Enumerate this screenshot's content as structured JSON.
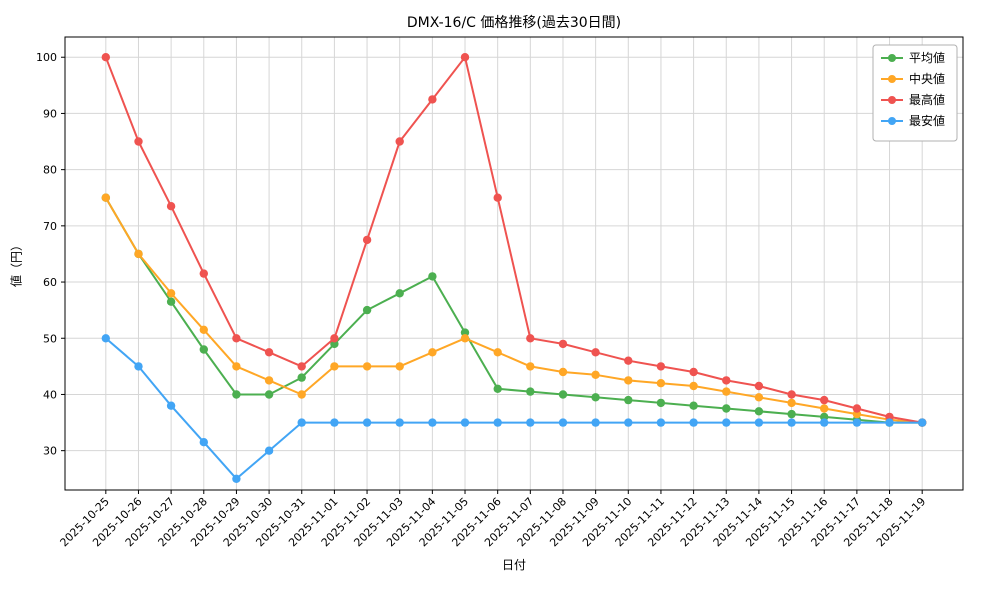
{
  "chart_data": {
    "type": "line",
    "title": "DMX-16/C 価格推移(過去30日間)",
    "xlabel": "日付",
    "ylabel": "値（円）",
    "ylim": [
      23,
      103.6
    ],
    "yticks": [
      30,
      40,
      50,
      60,
      70,
      80,
      90,
      100
    ],
    "grid": true,
    "legend_position": "top-right",
    "categories": [
      "2025-10-25",
      "2025-10-26",
      "2025-10-27",
      "2025-10-28",
      "2025-10-29",
      "2025-10-30",
      "2025-10-31",
      "2025-11-01",
      "2025-11-02",
      "2025-11-03",
      "2025-11-04",
      "2025-11-05",
      "2025-11-06",
      "2025-11-07",
      "2025-11-08",
      "2025-11-09",
      "2025-11-10",
      "2025-11-11",
      "2025-11-12",
      "2025-11-13",
      "2025-11-14",
      "2025-11-15",
      "2025-11-16",
      "2025-11-17",
      "2025-11-18",
      "2025-11-19"
    ],
    "series": [
      {
        "name": "平均値",
        "color": "#4caf50",
        "values": [
          75,
          65,
          56.5,
          48,
          40,
          40,
          43,
          49,
          55,
          58,
          61,
          51,
          41,
          40.5,
          40,
          39.5,
          39,
          38.5,
          38,
          37.5,
          37,
          36.5,
          36,
          35.5,
          35,
          35
        ]
      },
      {
        "name": "中央値",
        "color": "#ffa726",
        "values": [
          75,
          65,
          58,
          51.5,
          45,
          42.5,
          40,
          45,
          45,
          45,
          47.5,
          50,
          47.5,
          45,
          44,
          43.5,
          42.5,
          42,
          41.5,
          40.5,
          39.5,
          38.5,
          37.5,
          36.5,
          35.5,
          35
        ]
      },
      {
        "name": "最高値",
        "color": "#ef5350",
        "values": [
          100,
          85,
          73.5,
          61.5,
          50,
          47.5,
          45,
          50,
          67.5,
          85,
          92.5,
          100,
          75,
          50,
          49,
          47.5,
          46,
          45,
          44,
          42.5,
          41.5,
          40,
          39,
          37.5,
          36,
          35
        ]
      },
      {
        "name": "最安値",
        "color": "#42a5f5",
        "values": [
          50,
          45,
          38,
          31.5,
          25,
          30,
          35,
          35,
          35,
          35,
          35,
          35,
          35,
          35,
          35,
          35,
          35,
          35,
          35,
          35,
          35,
          35,
          35,
          35,
          35,
          35
        ]
      }
    ]
  }
}
